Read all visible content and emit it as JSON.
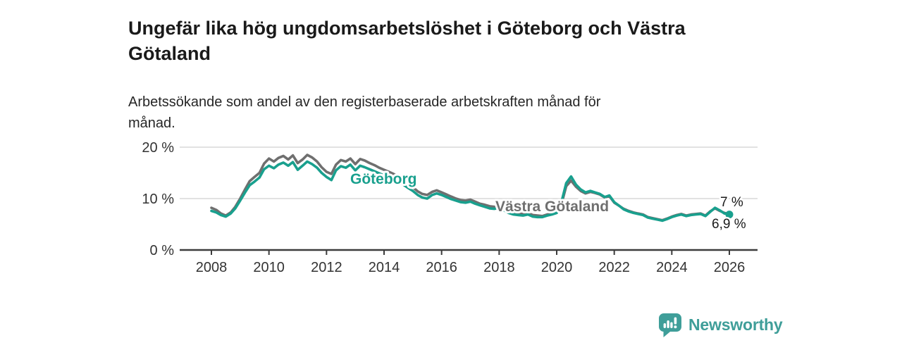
{
  "header": {
    "title": "Ungefär lika hög ungdomsarbetslöshet i Göteborg och Västra Götaland",
    "subtitle": "Arbetssökande som andel av den registerbaserade arbetskraften månad för månad."
  },
  "colors": {
    "goteborg_line": "#19a08e",
    "vastra_line": "#6f6f6f",
    "grid": "#d9d9d9",
    "axis": "#3c3c3c",
    "tick_text": "#333333",
    "value_text": "#1a1a1a",
    "brand_teal": "#3f9e99"
  },
  "chart_data": {
    "type": "line",
    "title": "Ungefär lika hög ungdomsarbetslöshet i Göteborg och Västra Götaland",
    "subtitle": "Arbetssökande som andel av den registerbaserade arbetskraften månad för månad.",
    "xlabel": "",
    "ylabel": "",
    "legend": "none (direct series labels on chart)",
    "grid": "horizontal gridlines at 10 % and 20 %",
    "ylim": [
      0,
      21.5
    ],
    "xlim": [
      2006.9,
      2027.0
    ],
    "y_ticks": [
      {
        "value": 0,
        "label": "0 %"
      },
      {
        "value": 10,
        "label": "10 %"
      },
      {
        "value": 20,
        "label": "20 %"
      }
    ],
    "x_ticks": [
      {
        "value": 2008,
        "label": "2008"
      },
      {
        "value": 2010,
        "label": "2010"
      },
      {
        "value": 2012,
        "label": "2012"
      },
      {
        "value": 2014,
        "label": "2014"
      },
      {
        "value": 2016,
        "label": "2016"
      },
      {
        "value": 2018,
        "label": "2018"
      },
      {
        "value": 2020,
        "label": "2020"
      },
      {
        "value": 2022,
        "label": "2022"
      },
      {
        "value": 2024,
        "label": "2024"
      },
      {
        "value": 2026,
        "label": "2026"
      }
    ],
    "x": [
      2008,
      2008.17,
      2008.33,
      2008.5,
      2008.67,
      2008.83,
      2009,
      2009.17,
      2009.33,
      2009.5,
      2009.67,
      2009.83,
      2010,
      2010.17,
      2010.33,
      2010.5,
      2010.67,
      2010.83,
      2011,
      2011.17,
      2011.33,
      2011.5,
      2011.67,
      2011.83,
      2012,
      2012.17,
      2012.33,
      2012.5,
      2012.67,
      2012.83,
      2013,
      2013.17,
      2013.33,
      2013.5,
      2013.67,
      2013.83,
      2014,
      2014.17,
      2014.33,
      2014.5,
      2014.67,
      2014.83,
      2015,
      2015.17,
      2015.33,
      2015.5,
      2015.67,
      2015.83,
      2016,
      2016.17,
      2016.33,
      2016.5,
      2016.67,
      2016.83,
      2017,
      2017.17,
      2017.33,
      2017.5,
      2017.67,
      2017.83,
      2018,
      2018.17,
      2018.33,
      2018.5,
      2018.67,
      2018.83,
      2019,
      2019.17,
      2019.33,
      2019.5,
      2019.67,
      2019.83,
      2020,
      2020.17,
      2020.33,
      2020.5,
      2020.67,
      2020.83,
      2021,
      2021.17,
      2021.33,
      2021.5,
      2021.67,
      2021.83,
      2022,
      2022.17,
      2022.33,
      2022.5,
      2022.67,
      2022.83,
      2023,
      2023.17,
      2023.33,
      2023.5,
      2023.67,
      2023.83,
      2024,
      2024.17,
      2024.33,
      2024.5,
      2024.67,
      2024.83,
      2025,
      2025.17,
      2025.33,
      2025.5,
      2025.67,
      2025.83,
      2026
    ],
    "series": [
      {
        "name": "Västra Götaland",
        "color": "#6f6f6f",
        "values": [
          8.2,
          7.8,
          7.1,
          6.7,
          7.3,
          8.4,
          10,
          11.8,
          13.4,
          14.2,
          15,
          16.8,
          17.8,
          17.2,
          17.9,
          18.3,
          17.6,
          18.4,
          16.9,
          17.6,
          18.5,
          18,
          17.2,
          16.1,
          15.2,
          14.8,
          16.6,
          17.5,
          17.2,
          17.8,
          16.7,
          17.7,
          17.4,
          16.9,
          16.5,
          16,
          15.6,
          15.2,
          14.8,
          14.2,
          13.5,
          12.8,
          12.2,
          11.4,
          10.9,
          10.7,
          11.3,
          11.6,
          11.2,
          10.8,
          10.4,
          10,
          9.7,
          9.6,
          9.8,
          9.4,
          9,
          8.8,
          8.5,
          8.4,
          8.6,
          8.1,
          7.6,
          7.3,
          7.1,
          7,
          7.2,
          6.8,
          6.7,
          6.6,
          6.9,
          7.1,
          7.4,
          9,
          12.4,
          13.5,
          12.3,
          11.5,
          11,
          11.3,
          11.1,
          10.8,
          10.2,
          10.5,
          9.2,
          8.6,
          8,
          7.6,
          7.3,
          7.1,
          6.9,
          6.4,
          6.2,
          6,
          5.8,
          6.1,
          6.5,
          6.8,
          7,
          6.7,
          6.9,
          7,
          7.1,
          6.7,
          7.5,
          8.1,
          7.6,
          7.2,
          7
        ]
      },
      {
        "name": "Göteborg",
        "color": "#19a08e",
        "values": [
          7.6,
          7.3,
          6.8,
          6.5,
          7.1,
          8.1,
          9.6,
          11.2,
          12.6,
          13.3,
          14.1,
          15.7,
          16.4,
          15.9,
          16.6,
          17,
          16.4,
          17.1,
          15.6,
          16.4,
          17.2,
          16.7,
          16,
          15,
          14.2,
          13.6,
          15.5,
          16.3,
          16,
          16.6,
          15.5,
          16.4,
          16.1,
          15.7,
          15.3,
          14.9,
          14.5,
          14.2,
          13.9,
          13.3,
          12.7,
          12.1,
          11.5,
          10.7,
          10.2,
          10,
          10.7,
          11,
          10.7,
          10.3,
          9.9,
          9.6,
          9.3,
          9.2,
          9.4,
          9,
          8.7,
          8.4,
          8.1,
          8,
          8.2,
          7.7,
          7.2,
          6.9,
          6.8,
          6.7,
          6.9,
          6.5,
          6.4,
          6.4,
          6.7,
          6.9,
          7.2,
          9.4,
          13,
          14.3,
          12.7,
          11.8,
          11.2,
          11.5,
          11.2,
          10.9,
          10.3,
          10.6,
          9.3,
          8.6,
          7.9,
          7.5,
          7.2,
          7,
          6.8,
          6.3,
          6.1,
          5.9,
          5.7,
          6,
          6.4,
          6.7,
          6.9,
          6.6,
          6.8,
          6.9,
          7,
          6.6,
          7.4,
          8.2,
          7.7,
          7.1,
          6.9
        ]
      }
    ],
    "annotations": {
      "goteborg_label": "Göteborg",
      "vastra_label": "Västra Götaland",
      "end_value_vastra": "7 %",
      "end_value_goteborg": "6,9 %"
    },
    "end_marker_series": "Göteborg"
  },
  "footer": {
    "brand": "Newsworthy"
  }
}
